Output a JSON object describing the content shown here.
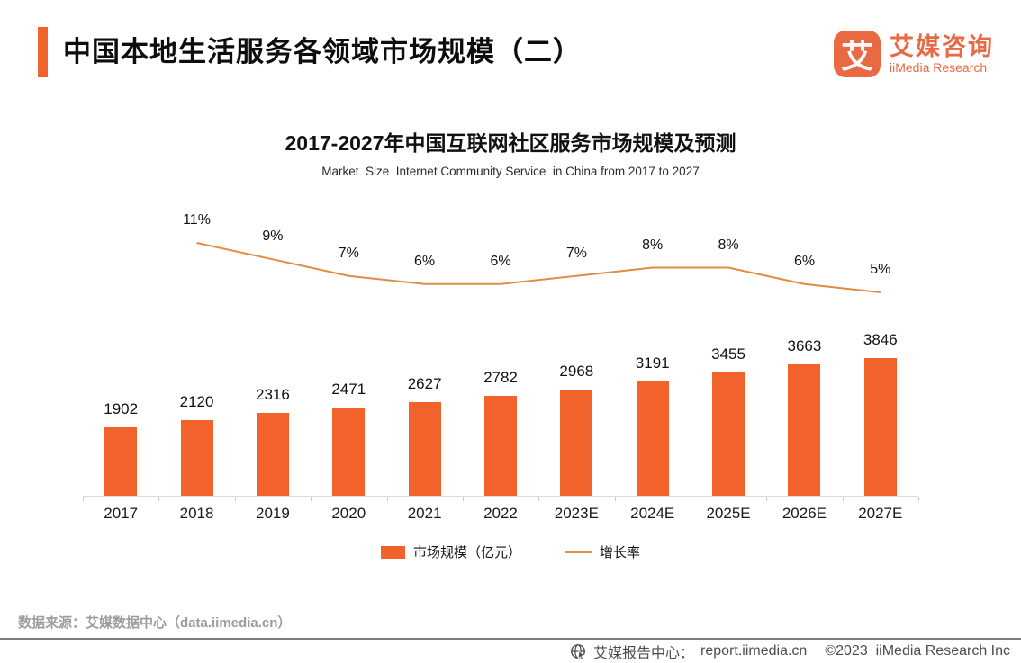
{
  "header": {
    "title": "中国本地生活服务各领域市场规模（二）"
  },
  "logo": {
    "glyph": "艾",
    "name_cn": "艾媒咨询",
    "name_en": "iiMedia Research"
  },
  "chart_data": {
    "type": "bar",
    "title": "2017-2027年中国互联网社区服务市场规模及预测",
    "subtitle": "Market  Size  Internet Community Service  in China from 2017 to 2027",
    "categories": [
      "2017",
      "2018",
      "2019",
      "2020",
      "2021",
      "2022",
      "2023E",
      "2024E",
      "2025E",
      "2026E",
      "2027E"
    ],
    "series": [
      {
        "name": "市场规模（亿元）",
        "type": "bar",
        "color": "#F2622B",
        "values": [
          1902,
          2120,
          2316,
          2471,
          2627,
          2782,
          2968,
          3191,
          3455,
          3663,
          3846
        ]
      },
      {
        "name": "增长率",
        "type": "line",
        "color": "#E18C43",
        "values_pct": [
          null,
          11,
          9,
          7,
          6,
          6,
          7,
          8,
          8,
          6,
          5
        ],
        "labels": [
          "",
          "11%",
          "9%",
          "7%",
          "6%",
          "6%",
          "7%",
          "8%",
          "8%",
          "6%",
          "5%"
        ]
      }
    ],
    "ylabel": "市场规模（亿元）",
    "y2label": "增长率",
    "grid": false,
    "legend_position": "bottom"
  },
  "legend": {
    "bar": "市场规模（亿元）",
    "line": "增长率"
  },
  "source": "数据来源：艾媒数据中心（data.iimedia.cn）",
  "footer": {
    "center": "艾媒报告中心：",
    "url": "report.iimedia.cn",
    "copyright": "©2023  iiMedia Research Inc"
  }
}
